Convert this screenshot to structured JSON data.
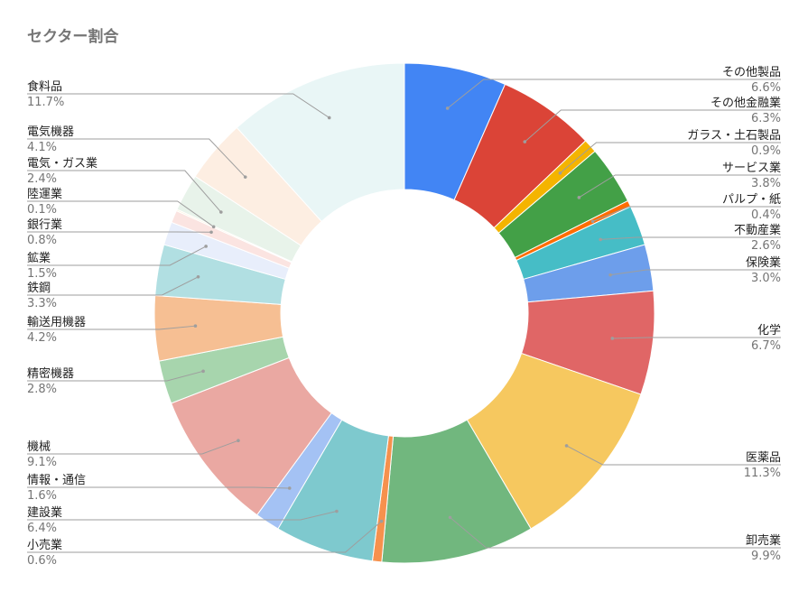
{
  "chart_data": {
    "type": "pie",
    "donut": true,
    "title": "セクター割合",
    "slices": [
      {
        "label": "その他製品",
        "value": 6.6,
        "pct_label": "6.6%",
        "color": "#4285f4"
      },
      {
        "label": "その他金融業",
        "value": 6.3,
        "pct_label": "6.3%",
        "color": "#db4437"
      },
      {
        "label": "ガラス・土石製品",
        "value": 0.9,
        "pct_label": "0.9%",
        "color": "#f4b400"
      },
      {
        "label": "サービス業",
        "value": 3.8,
        "pct_label": "3.8%",
        "color": "#43a047"
      },
      {
        "label": "パルプ・紙",
        "value": 0.4,
        "pct_label": "0.4%",
        "color": "#ff6d01"
      },
      {
        "label": "不動産業",
        "value": 2.6,
        "pct_label": "2.6%",
        "color": "#46bdc6"
      },
      {
        "label": "保険業",
        "value": 3.0,
        "pct_label": "3.0%",
        "color": "#6d9eeb"
      },
      {
        "label": "化学",
        "value": 6.7,
        "pct_label": "6.7%",
        "color": "#e06666"
      },
      {
        "label": "医薬品",
        "value": 11.3,
        "pct_label": "11.3%",
        "color": "#f6c85f"
      },
      {
        "label": "卸売業",
        "value": 9.9,
        "pct_label": "9.9%",
        "color": "#71b77e"
      },
      {
        "label": "小売業",
        "value": 0.6,
        "pct_label": "0.6%",
        "color": "#f6914d"
      },
      {
        "label": "建設業",
        "value": 6.4,
        "pct_label": "6.4%",
        "color": "#7ec9ce"
      },
      {
        "label": "情報・通信",
        "value": 1.6,
        "pct_label": "1.6%",
        "color": "#a4c2f4"
      },
      {
        "label": "機械",
        "value": 9.1,
        "pct_label": "9.1%",
        "color": "#eaa8a2"
      },
      {
        "label": "精密機器",
        "value": 2.8,
        "pct_label": "2.8%",
        "color": "#a7d5ad"
      },
      {
        "label": "輸送用機器",
        "value": 4.2,
        "pct_label": "4.2%",
        "color": "#f6bf93"
      },
      {
        "label": "鉄鋼",
        "value": 3.3,
        "pct_label": "3.3%",
        "color": "#b1dfe2"
      },
      {
        "label": "鉱業",
        "value": 1.5,
        "pct_label": "1.5%",
        "color": "#e8eefb"
      },
      {
        "label": "銀行業",
        "value": 0.8,
        "pct_label": "0.8%",
        "color": "#fbe4e1"
      },
      {
        "label": "陸運業",
        "value": 0.1,
        "pct_label": "0.1%",
        "color": "#fcf3dd"
      },
      {
        "label": "電気・ガス業",
        "value": 2.4,
        "pct_label": "2.4%",
        "color": "#e8f3ea"
      },
      {
        "label": "電気機器",
        "value": 4.1,
        "pct_label": "4.1%",
        "color": "#fdeee2"
      },
      {
        "label": "食料品",
        "value": 11.7,
        "pct_label": "11.7%",
        "color": "#e9f6f6"
      }
    ]
  }
}
